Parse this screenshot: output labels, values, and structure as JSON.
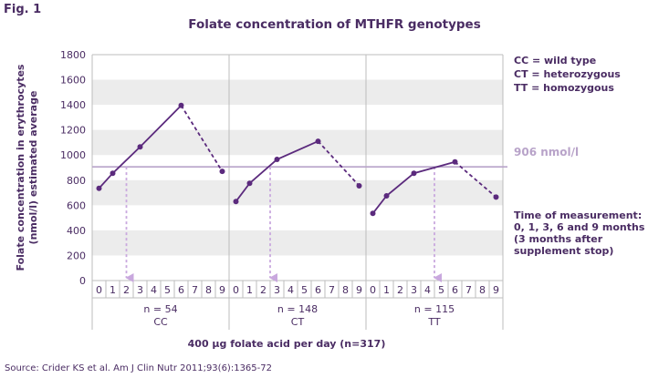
{
  "figure_label": "Fig. 1",
  "source": "Source: Crider KS et al. Am J Clin Nutr 2011;93(6):1365-72",
  "legend": [
    "CC = wild type",
    "CT = heterozygous",
    "TT = homozygous"
  ],
  "reference_label": "906 nmol/l",
  "measurement_note": [
    "Time of measurement:",
    "0, 1, 3, 6 and 9 months",
    "(3 months after",
    "supplement stop)"
  ],
  "chart_data": {
    "type": "line",
    "title": "Folate concentration of MTHFR genotypes",
    "xlabel": "400 µg folate acid per day (n=317)",
    "ylabel": "Folate concentration in erythrocytes (nmol/l) estimated average",
    "ylim": [
      0,
      1800
    ],
    "yticks": [
      0,
      200,
      400,
      600,
      800,
      1000,
      1200,
      1400,
      1600,
      1800
    ],
    "month_ticks": [
      0,
      1,
      2,
      3,
      4,
      5,
      6,
      7,
      8,
      9
    ],
    "reference_line": 906,
    "grid": "alternating horizontal bands",
    "groups": [
      {
        "genotype": "CC",
        "n_label": "n = 54",
        "months": [
          0,
          1,
          3,
          6,
          9
        ],
        "values": [
          735,
          855,
          1065,
          1395,
          870
        ],
        "stop_month": 6,
        "arrow_month": 2
      },
      {
        "genotype": "CT",
        "n_label": "n = 148",
        "months": [
          0,
          1,
          3,
          6,
          9
        ],
        "values": [
          630,
          775,
          965,
          1110,
          755
        ],
        "stop_month": 6,
        "arrow_month": 2.5
      },
      {
        "genotype": "TT",
        "n_label": "n = 115",
        "months": [
          0,
          1,
          3,
          6,
          9
        ],
        "values": [
          535,
          675,
          855,
          945,
          665
        ],
        "stop_month": 6,
        "arrow_month": 4.5
      }
    ],
    "colors": {
      "line": "#5b2a7d",
      "band": "#ececec",
      "reference": "#b8a3c9",
      "arrow": "#c9a8de",
      "axis": "#bdbdbd"
    }
  }
}
